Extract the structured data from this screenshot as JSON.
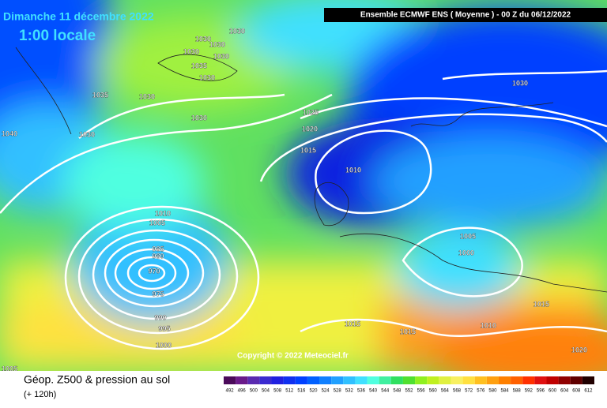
{
  "header": {
    "date": "Dimanche 11 décembre 2022",
    "time": "1:00 locale",
    "model": "Ensemble ECMWF ENS  ( Moyenne )  -  00 Z du 06/12/2022"
  },
  "copyright": "Copyright © 2022 Meteociel.fr",
  "footer": {
    "title": "Géop. Z500 & pression au sol",
    "lead": "(+ 120h)"
  },
  "isobars": [
    1030,
    1030,
    1030,
    1030,
    1030,
    1035,
    1030,
    1035,
    1030,
    1030,
    1030,
    1040,
    1025,
    1020,
    1015,
    1010,
    1030,
    1010,
    1005,
    985,
    980,
    970,
    975,
    990,
    995,
    1000,
    1005,
    1000,
    1015,
    1010,
    1015,
    1015,
    1020,
    1005
  ],
  "scale": {
    "labels": [
      492,
      496,
      500,
      504,
      508,
      512,
      516,
      520,
      524,
      528,
      532,
      536,
      540,
      544,
      548,
      552,
      556,
      560,
      564,
      568,
      572,
      576,
      580,
      584,
      588,
      592,
      596,
      600,
      604,
      608,
      612
    ],
    "colors": [
      "#4b0a5a",
      "#6a1a8a",
      "#5a2ab0",
      "#3a2ad0",
      "#2020e0",
      "#1030f0",
      "#0040ff",
      "#0060ff",
      "#1080ff",
      "#20a0ff",
      "#30c0ff",
      "#40e0ff",
      "#50ffe0",
      "#40f0a0",
      "#30e060",
      "#50e030",
      "#90f020",
      "#c0f020",
      "#e0f040",
      "#f8f060",
      "#ffe040",
      "#ffc020",
      "#ffa010",
      "#ff8000",
      "#ff6000",
      "#ff3000",
      "#e01010",
      "#c00000",
      "#900000",
      "#600000",
      "#200000"
    ]
  }
}
